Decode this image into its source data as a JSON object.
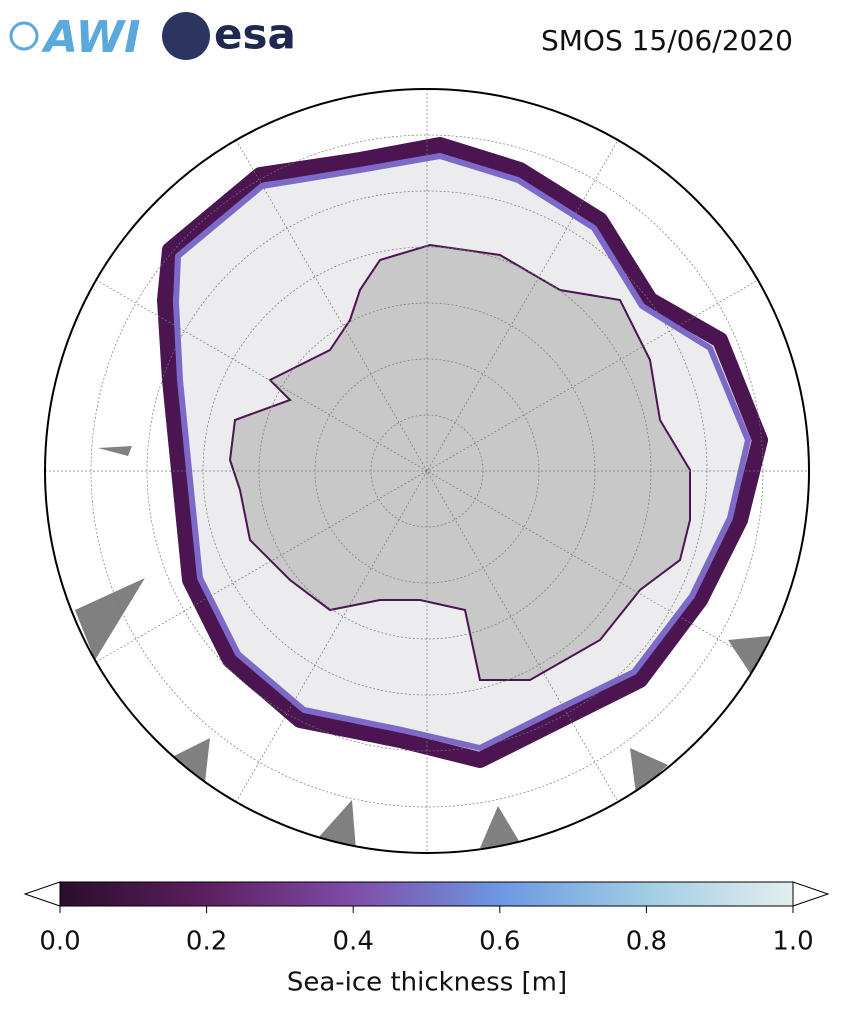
{
  "header": {
    "logos": [
      "AWI",
      "esa"
    ],
    "title": "SMOS 15/06/2020"
  },
  "colorbar": {
    "label": "Sea-ice thickness [m]",
    "lim": [
      0,
      1
    ],
    "ticks": [
      {
        "value": 0,
        "label": "0.0"
      },
      0.2,
      0.4,
      0.6,
      0.8,
      {
        "value": 1,
        "label": "1.0"
      }
    ],
    "colors": [
      "#2a0d2c",
      "#5c1f60",
      "#7f4ca8",
      "#6d97e2",
      "#a0cde4",
      "#e2eeee"
    ]
  }
}
